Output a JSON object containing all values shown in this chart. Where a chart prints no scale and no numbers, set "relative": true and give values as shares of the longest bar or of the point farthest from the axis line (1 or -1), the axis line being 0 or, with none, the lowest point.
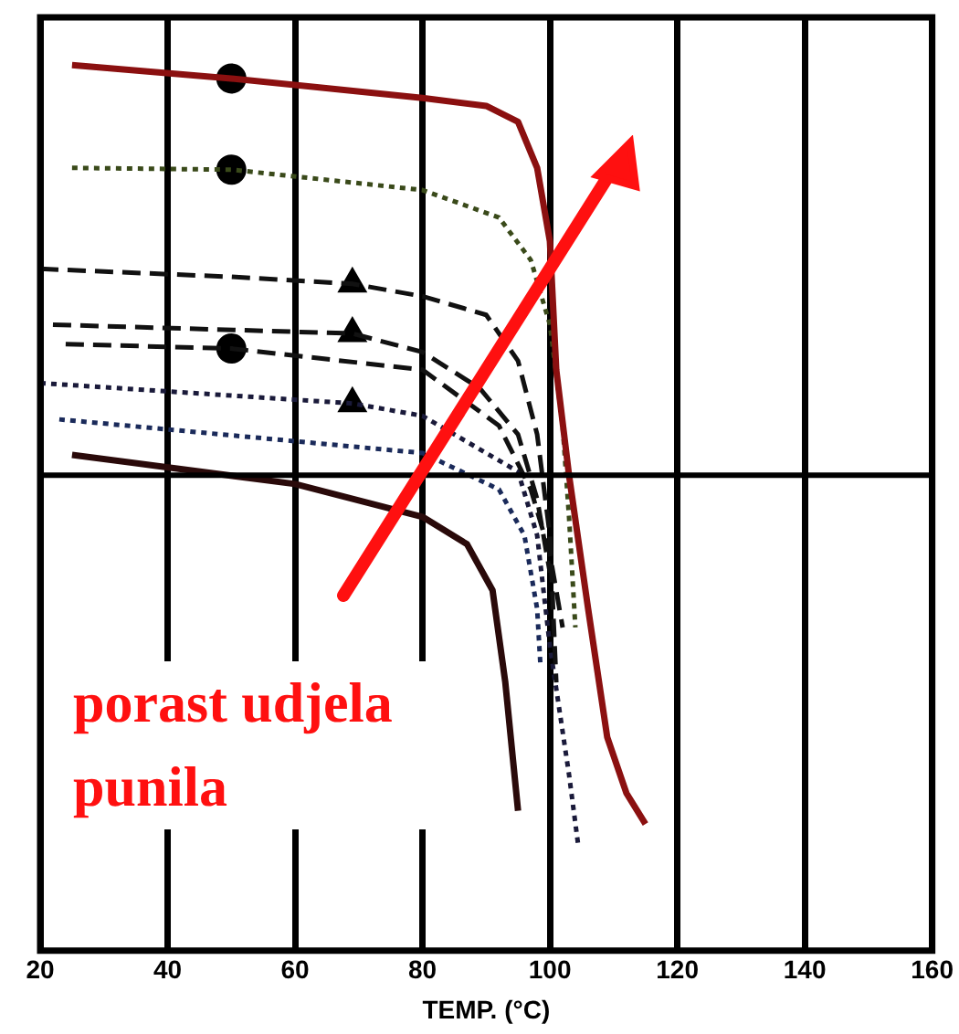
{
  "chart_data": {
    "type": "line",
    "relative": true,
    "xlabel": "TEMP. (°C)",
    "xlim": [
      20,
      160
    ],
    "xticks": [
      20,
      40,
      60,
      80,
      100,
      120,
      140,
      160
    ],
    "grid": "x",
    "legend": false,
    "annotations": [
      "porast udjela punila"
    ],
    "ref_lines": [
      {
        "axis": "y",
        "value": 0.537,
        "color": "#000000"
      }
    ],
    "series": [
      {
        "color": "#8b1010",
        "line_style": "solid",
        "x": [
          25,
          50,
          80,
          90,
          95,
          98,
          100,
          101,
          103,
          106,
          109,
          112,
          115
        ],
        "values": [
          1.0,
          0.985,
          0.963,
          0.954,
          0.936,
          0.884,
          0.801,
          0.656,
          0.537,
          0.386,
          0.241,
          0.178,
          0.143
        ]
      },
      {
        "color": "#3a4a1a",
        "line_style": "dotted",
        "x": [
          25,
          50,
          80,
          92,
          97,
          100,
          102,
          103,
          104
        ],
        "values": [
          0.884,
          0.882,
          0.859,
          0.828,
          0.78,
          0.707,
          0.593,
          0.49,
          0.365
        ]
      },
      {
        "color": "#111111",
        "line_style": "dashed",
        "x": [
          20,
          50,
          69,
          80,
          90,
          95,
          98,
          100,
          101
        ],
        "values": [
          0.77,
          0.761,
          0.753,
          0.739,
          0.718,
          0.666,
          0.583,
          0.469,
          0.303
        ]
      },
      {
        "color": "#111111",
        "line_style": "dashed",
        "x": [
          22,
          69,
          80,
          89,
          95,
          98,
          100
        ],
        "values": [
          0.707,
          0.697,
          0.676,
          0.635,
          0.583,
          0.51,
          0.427
        ]
      },
      {
        "color": "#111111",
        "line_style": "dashed",
        "x": [
          24,
          50,
          80,
          92,
          97,
          100,
          102
        ],
        "values": [
          0.685,
          0.68,
          0.656,
          0.593,
          0.521,
          0.448,
          0.365
        ]
      },
      {
        "color": "#1a1a3a",
        "line_style": "dotted",
        "x": [
          20,
          69,
          80,
          95,
          98,
          100,
          103,
          104.5
        ],
        "values": [
          0.641,
          0.618,
          0.604,
          0.541,
          0.469,
          0.344,
          0.199,
          0.116
        ]
      },
      {
        "color": "#1a2a5a",
        "line_style": "dotted",
        "x": [
          23,
          80,
          92,
          96,
          98,
          98.5
        ],
        "values": [
          0.6,
          0.562,
          0.521,
          0.469,
          0.386,
          0.324
        ]
      },
      {
        "color": "#2a0a0a",
        "line_style": "solid",
        "x": [
          25,
          60,
          80,
          87,
          91,
          93,
          95
        ],
        "values": [
          0.56,
          0.527,
          0.49,
          0.459,
          0.407,
          0.303,
          0.158
        ]
      },
      {
        "type": "scatter",
        "marker": "circle",
        "color": "#000000",
        "x": [
          50,
          50,
          50
        ],
        "values": [
          0.985,
          0.882,
          0.68
        ]
      },
      {
        "type": "scatter",
        "marker": "triangle",
        "color": "#000000",
        "x": [
          69,
          69,
          69
        ],
        "values": [
          0.753,
          0.697,
          0.618
        ]
      }
    ]
  }
}
